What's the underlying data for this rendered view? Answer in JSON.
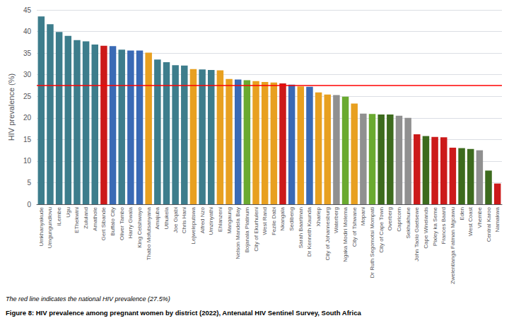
{
  "chart_data": {
    "type": "bar",
    "ylabel": "HIV prevalence (%)",
    "categories": [
      "Umkhanyakude",
      "Umgungundlovu",
      "iLembe",
      "Ugu",
      "EThekwini",
      "Zululand",
      "Amathole",
      "Gert Sibande",
      "Buffalo City",
      "Oliver Tambo",
      "Harry Gwala",
      "King Cetshwayo",
      "Thabo Mofutsanyana",
      "Amajuba",
      "Uthukela",
      "Joe Gqabi",
      "Chris Hani",
      "Lejweleputswa",
      "Alfred Nzo",
      "Umzinyathi",
      "Ehlanzeni",
      "Mangaung",
      "Nelson Mandela Bay",
      "Bojanala Platinum",
      "City of Ekurhuleni",
      "West Rand",
      "Fezile Dabi",
      "Nkangala",
      "Sedibeng",
      "Sarah Baartman",
      "Dr Kenneth Kaunda",
      "Xhariep",
      "City of Johannesburg",
      "Waterberg",
      "Ngaka Modiri Molema",
      "City of Tshwane",
      "Mopani",
      "Dr Ruth Segomotsi Mompati",
      "City of Cape Town",
      "Overberg",
      "Capricorn",
      "Sekhukhune",
      "John Taolo Gaetsewe",
      "Cape Winelands",
      "Pixley ka Seme",
      "Frances Baard",
      "Zwelentlanga Fatman Mgcawu",
      "Eden",
      "West Coast",
      "Vhembe",
      "Central Karoo",
      "Namakwa"
    ],
    "values": [
      43.5,
      41.7,
      39.9,
      39.0,
      38.0,
      37.7,
      37.0,
      36.7,
      36.6,
      35.8,
      35.6,
      35.6,
      35.1,
      33.5,
      32.9,
      32.2,
      32.1,
      31.3,
      31.2,
      31.1,
      31.0,
      29.0,
      28.9,
      28.7,
      28.5,
      28.3,
      28.2,
      28.0,
      27.7,
      27.3,
      27.2,
      25.9,
      25.4,
      25.3,
      24.9,
      23.3,
      21.0,
      20.9,
      20.8,
      20.8,
      20.5,
      20.0,
      16.2,
      15.8,
      15.6,
      15.5,
      13.1,
      13.0,
      12.8,
      12.5,
      7.8,
      4.8
    ],
    "colors": [
      "#3d7d8c",
      "#3d7d8c",
      "#3d7d8c",
      "#3d7d8c",
      "#3d7d8c",
      "#3d7d8c",
      "#3d7d8c",
      "#cc1a1a",
      "#3a6ab5",
      "#3d7d8c",
      "#3a6ab5",
      "#3a6ab5",
      "#e8a020",
      "#3d7d8c",
      "#3d7d8c",
      "#3d7d8c",
      "#3d7d8c",
      "#e8a020",
      "#3d7d8c",
      "#3d7d8c",
      "#e8a020",
      "#e8a020",
      "#3a6ab5",
      "#6aaa30",
      "#e8a020",
      "#e8a020",
      "#e8a020",
      "#cc1a1a",
      "#3a6ab5",
      "#e8a020",
      "#3a6ab5",
      "#e8a020",
      "#e8a020",
      "#909090",
      "#6aaa30",
      "#e8a020",
      "#909090",
      "#6aaa30",
      "#3d6b1e",
      "#3d6b1e",
      "#909090",
      "#909090",
      "#cc1a1a",
      "#3d6b1e",
      "#cc1a1a",
      "#cc1a1a",
      "#cc1a1a",
      "#3d6b1e",
      "#3d6b1e",
      "#909090",
      "#3d6b1e",
      "#cc1a1a"
    ],
    "reference_line": {
      "value": 27.5,
      "color": "#ff0000"
    },
    "ylim": [
      0,
      45
    ],
    "yticks": [
      0,
      5,
      10,
      15,
      20,
      25,
      30,
      35,
      40,
      45
    ],
    "grid": true,
    "footnote": "The red line indicates the national HIV prevalence (27.5%)",
    "caption": "Figure 8: HIV prevalence among pregnant women by district (2022), Antenatal HIV Sentinel Survey, South Africa"
  }
}
